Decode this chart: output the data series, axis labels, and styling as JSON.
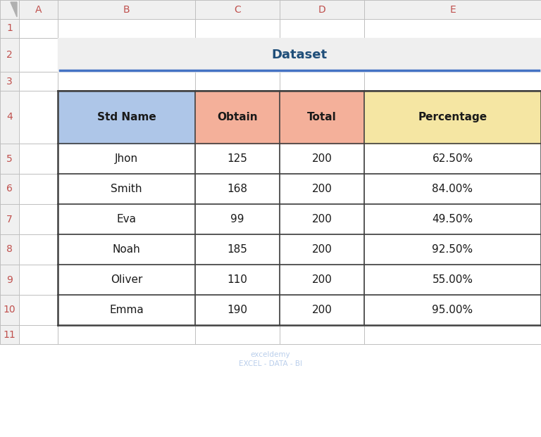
{
  "title": "Dataset",
  "col_headers": [
    "Std Name",
    "Obtain",
    "Total",
    "Percentage"
  ],
  "col_header_colors": [
    "#aec6e8",
    "#f4b09a",
    "#f4b09a",
    "#f5e6a3"
  ],
  "rows": [
    [
      "Jhon",
      "125",
      "200",
      "62.50%"
    ],
    [
      "Smith",
      "168",
      "200",
      "84.00%"
    ],
    [
      "Eva",
      "99",
      "200",
      "49.50%"
    ],
    [
      "Noah",
      "185",
      "200",
      "92.50%"
    ],
    [
      "Oliver",
      "110",
      "200",
      "55.00%"
    ],
    [
      "Emma",
      "190",
      "200",
      "95.00%"
    ]
  ],
  "col_letters": [
    "A",
    "B",
    "C",
    "D",
    "E"
  ],
  "row_labels": [
    "1",
    "2",
    "3",
    "4",
    "5",
    "6",
    "7",
    "8",
    "9",
    "10",
    "11"
  ],
  "bg_color": "#ffffff",
  "header_bg": "#f0f0f0",
  "cell_bg": "#ffffff",
  "grid_color": "#bfbfbf",
  "table_border_color": "#404040",
  "title_bg": "#efefef",
  "title_color": "#1f4e79",
  "title_fontsize": 13,
  "header_fontsize": 11,
  "cell_fontsize": 11,
  "row_num_fontsize": 10,
  "col_letter_fontsize": 10,
  "row_num_color": "#c0504d",
  "col_letter_color": "#c0504d",
  "watermark_text": "exceldemy\nEXCEL - DATA - BI",
  "watermark_color": "#aec6e8",
  "title_underline_color": "#4472c4",
  "clh": 27,
  "rnw": 27,
  "col_widths_ABCDE": [
    55,
    195,
    120,
    120,
    251
  ],
  "row_heights_1to11": [
    27,
    48,
    27,
    75,
    43,
    43,
    43,
    43,
    43,
    43,
    27
  ]
}
